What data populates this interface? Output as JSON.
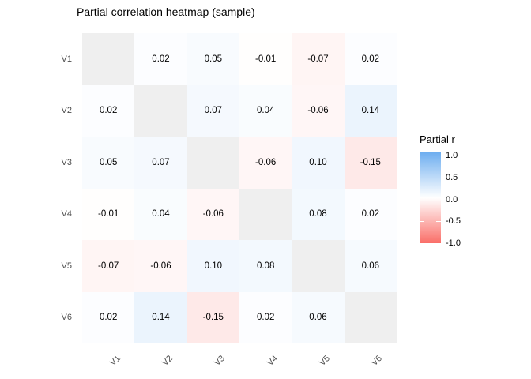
{
  "chart_data": {
    "type": "heatmap",
    "title": "Partial correlation heatmap (sample)",
    "rows": [
      "V1",
      "V2",
      "V3",
      "V4",
      "V5",
      "V6"
    ],
    "cols": [
      "V1",
      "V2",
      "V3",
      "V4",
      "V5",
      "V6"
    ],
    "values": [
      [
        null,
        0.02,
        0.05,
        -0.01,
        -0.07,
        0.02
      ],
      [
        0.02,
        null,
        0.07,
        0.04,
        -0.06,
        0.14
      ],
      [
        0.05,
        0.07,
        null,
        -0.06,
        0.1,
        -0.15
      ],
      [
        -0.01,
        0.04,
        -0.06,
        null,
        0.08,
        0.02
      ],
      [
        -0.07,
        -0.06,
        0.1,
        0.08,
        null,
        0.06
      ],
      [
        0.02,
        0.14,
        -0.15,
        0.02,
        0.06,
        null
      ]
    ],
    "value_decimals": 2,
    "x_tick_angle": 45,
    "grid": false,
    "legend": {
      "title": "Partial r",
      "position": "right",
      "ticks": [
        "1.0",
        "0.5",
        "0.0",
        "-0.5",
        "-1.0"
      ],
      "range": [
        -1,
        1
      ]
    },
    "colors": {
      "high": "#6EAEF0",
      "mid": "#FFFFFF",
      "low": "#FA6E68",
      "na": "#EFEFEF",
      "axis_text": "#4D4D4D",
      "cell_text": "#000000",
      "background": "#FFFFFF"
    }
  }
}
